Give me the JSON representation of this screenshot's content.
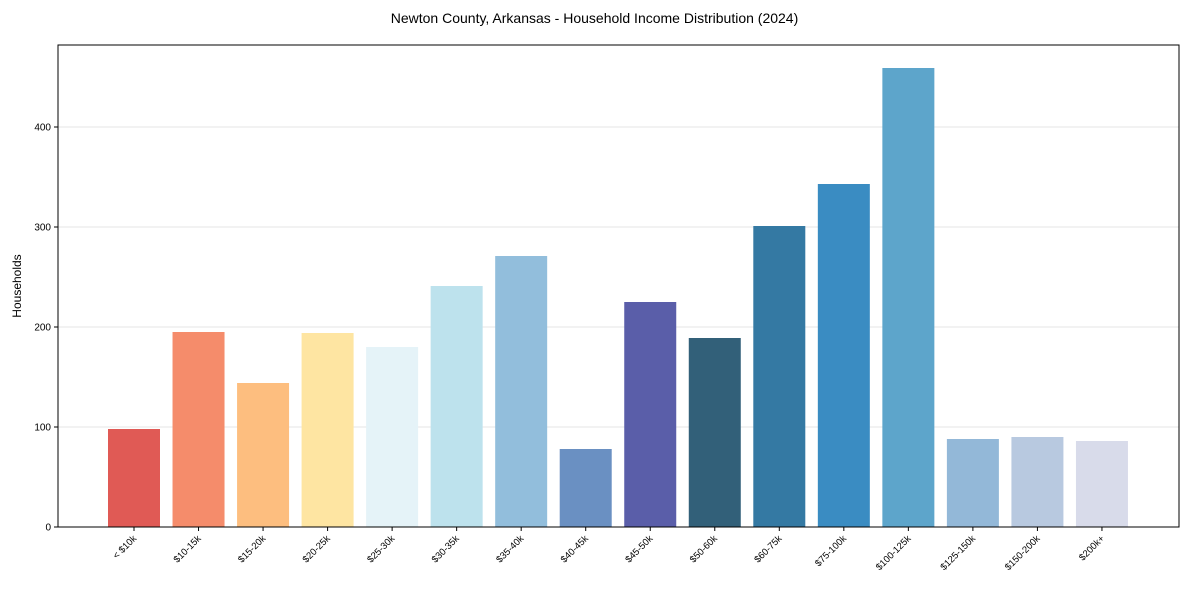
{
  "chart_data": {
    "type": "bar",
    "title": "Newton County, Arkansas - Household Income Distribution (2024)",
    "xlabel": "",
    "ylabel": "Households",
    "ylim": [
      0,
      480
    ],
    "yticks": [
      0,
      100,
      200,
      300,
      400
    ],
    "grid": "y",
    "categories": [
      "< $10k",
      "$10-15k",
      "$15-20k",
      "$20-25k",
      "$25-30k",
      "$30-35k",
      "$35-40k",
      "$40-45k",
      "$45-50k",
      "$50-60k",
      "$60-75k",
      "$75-100k",
      "$100-125k",
      "$125-150k",
      "$150-200k",
      "$200k+"
    ],
    "values": [
      98,
      195,
      144,
      194,
      180,
      241,
      271,
      78,
      225,
      189,
      301,
      343,
      459,
      88,
      90,
      86
    ],
    "colors": [
      "#e05a55",
      "#f58c6b",
      "#fdbe7f",
      "#fee5a2",
      "#e5f3f8",
      "#bde2ed",
      "#92bedc",
      "#6a90c2",
      "#5a5ea9",
      "#326079",
      "#3479a3",
      "#3a8cc2",
      "#5da5cb",
      "#93b8d8",
      "#b8c9e0",
      "#d8dbea"
    ]
  }
}
